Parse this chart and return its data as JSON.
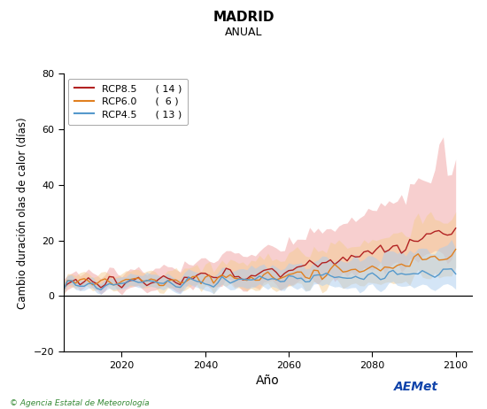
{
  "title": "MADRID",
  "subtitle": "ANUAL",
  "xlabel": "Año",
  "ylabel": "Cambio duración olas de calor (días)",
  "xlim": [
    2006,
    2104
  ],
  "ylim": [
    -20,
    80
  ],
  "yticks": [
    -20,
    0,
    20,
    40,
    60,
    80
  ],
  "xticks": [
    2020,
    2040,
    2060,
    2080,
    2100
  ],
  "year_start": 2006,
  "year_end": 2101,
  "rcp85_color": "#b22222",
  "rcp85_fill": "#f0a0a0",
  "rcp60_color": "#e08020",
  "rcp60_fill": "#f5cc90",
  "rcp45_color": "#5599cc",
  "rcp45_fill": "#aaccee",
  "legend_labels": [
    "RCP8.5",
    "RCP6.0",
    "RCP4.5"
  ],
  "legend_counts": [
    "( 14 )",
    "(  6 )",
    "( 13 )"
  ],
  "background_color": "#ffffff",
  "plot_bg_color": "#ffffff",
  "footer_text": "© Agencia Estatal de Meteorología",
  "hline_y": 0,
  "hline_color": "#000000"
}
